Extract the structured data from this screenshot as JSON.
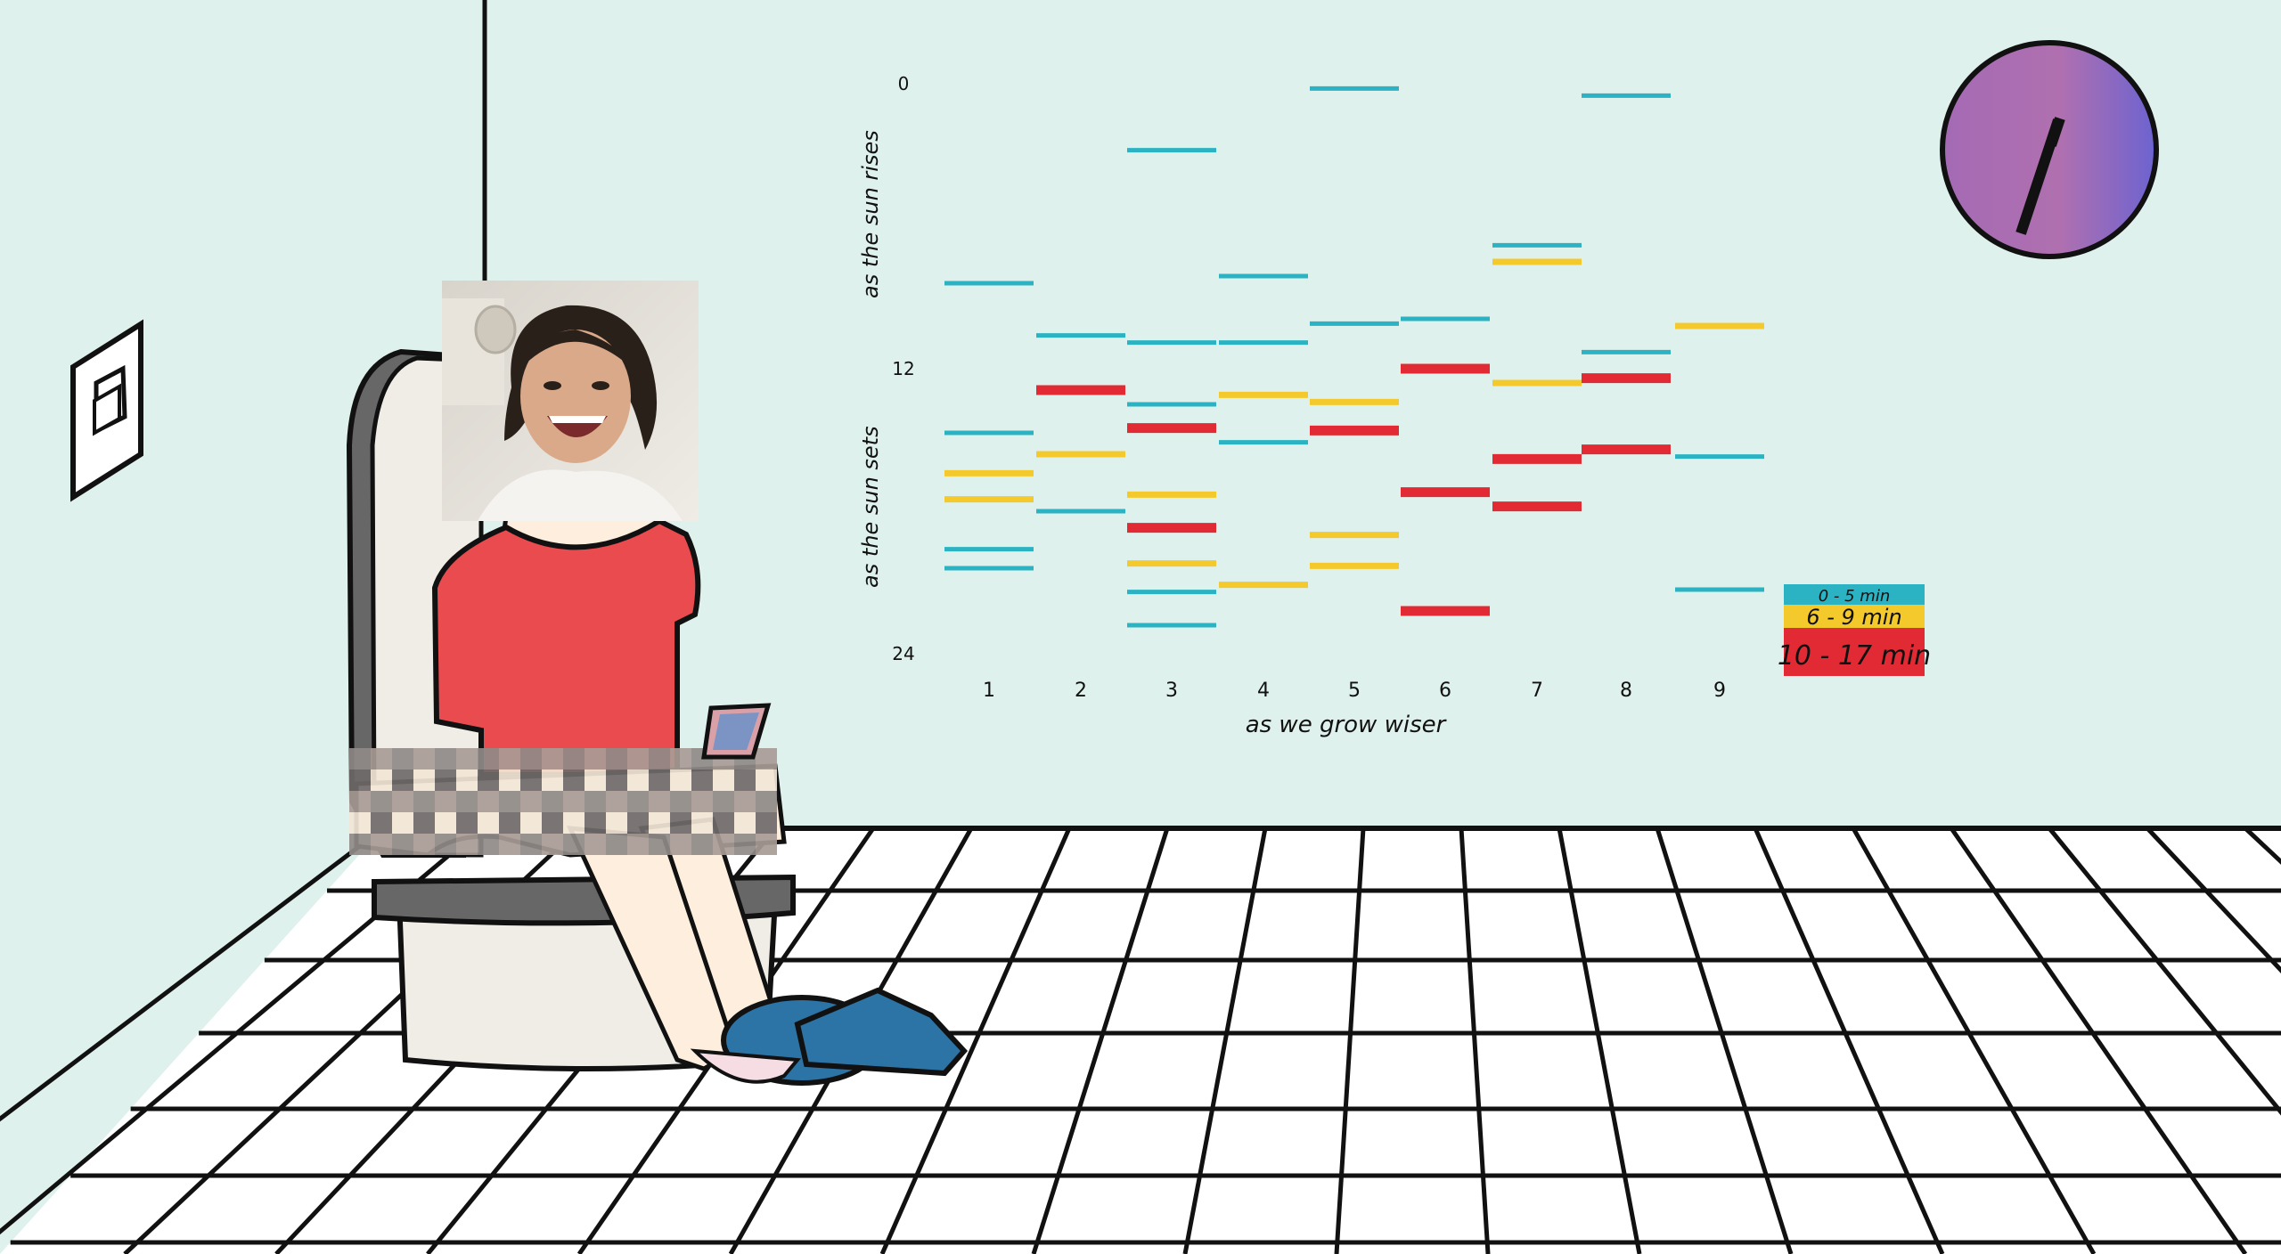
{
  "colors": {
    "wall": "#dff1ec",
    "floor": "#ffffff",
    "shirt": "#ea4b4f",
    "skin": "#fdeedd",
    "slipper": "#2c73a6",
    "toilet_body": "#efede6",
    "toilet_seat": "#676767",
    "clock_a": "#a46ab4",
    "clock_b": "#6c63d0",
    "cat_short": "#2bb3c4",
    "cat_mid": "#f4c92b",
    "cat_long": "#e12a33"
  },
  "icons": {
    "light_switch": "light-switch-icon",
    "clock": "wall-clock-icon",
    "phone": "phone-icon"
  },
  "chart_data": {
    "type": "scatter",
    "mark": "horizontal-tick",
    "title": "",
    "xlabel": "as we grow wiser",
    "ylabel_top": "as the sun rises",
    "ylabel_bottom": "as the sun sets",
    "x_ticks": [
      "1",
      "2",
      "3",
      "4",
      "5",
      "6",
      "7",
      "8",
      "9"
    ],
    "y_ticks": [
      {
        "value": 0,
        "label": "0"
      },
      {
        "value": 12,
        "label": "12"
      },
      {
        "value": 24,
        "label": "24"
      }
    ],
    "ylim": [
      0,
      24
    ],
    "y_inverted": true,
    "legend": {
      "placement": "right",
      "entries": [
        {
          "key": "short",
          "label": "0 - 5 min"
        },
        {
          "key": "mid",
          "label": "6 - 9 min"
        },
        {
          "key": "long",
          "label": "10 - 17 min"
        }
      ]
    },
    "series": [
      {
        "x": 1,
        "points": [
          {
            "y": 8.4,
            "cat": "short"
          },
          {
            "y": 14.7,
            "cat": "short"
          },
          {
            "y": 16.4,
            "cat": "mid"
          },
          {
            "y": 17.5,
            "cat": "mid"
          },
          {
            "y": 19.6,
            "cat": "short"
          },
          {
            "y": 20.4,
            "cat": "short"
          }
        ]
      },
      {
        "x": 2,
        "points": [
          {
            "y": 10.6,
            "cat": "short"
          },
          {
            "y": 12.9,
            "cat": "long"
          },
          {
            "y": 15.6,
            "cat": "mid"
          },
          {
            "y": 18.0,
            "cat": "short"
          }
        ]
      },
      {
        "x": 3,
        "points": [
          {
            "y": 2.8,
            "cat": "short"
          },
          {
            "y": 10.9,
            "cat": "short"
          },
          {
            "y": 13.5,
            "cat": "short"
          },
          {
            "y": 14.5,
            "cat": "long"
          },
          {
            "y": 17.3,
            "cat": "mid"
          },
          {
            "y": 18.7,
            "cat": "long"
          },
          {
            "y": 20.2,
            "cat": "mid"
          },
          {
            "y": 21.4,
            "cat": "short"
          },
          {
            "y": 22.8,
            "cat": "short"
          }
        ]
      },
      {
        "x": 4,
        "points": [
          {
            "y": 8.1,
            "cat": "short"
          },
          {
            "y": 10.9,
            "cat": "short"
          },
          {
            "y": 13.1,
            "cat": "mid"
          },
          {
            "y": 15.1,
            "cat": "short"
          },
          {
            "y": 21.1,
            "cat": "mid"
          }
        ]
      },
      {
        "x": 5,
        "points": [
          {
            "y": 0.2,
            "cat": "short"
          },
          {
            "y": 10.1,
            "cat": "short"
          },
          {
            "y": 13.4,
            "cat": "mid"
          },
          {
            "y": 14.6,
            "cat": "long"
          },
          {
            "y": 19.0,
            "cat": "mid"
          },
          {
            "y": 20.3,
            "cat": "mid"
          }
        ]
      },
      {
        "x": 6,
        "points": [
          {
            "y": 9.9,
            "cat": "short"
          },
          {
            "y": 12.0,
            "cat": "long"
          },
          {
            "y": 17.2,
            "cat": "long"
          },
          {
            "y": 22.2,
            "cat": "long"
          }
        ]
      },
      {
        "x": 7,
        "points": [
          {
            "y": 6.8,
            "cat": "short"
          },
          {
            "y": 7.5,
            "cat": "mid"
          },
          {
            "y": 12.6,
            "cat": "mid"
          },
          {
            "y": 15.8,
            "cat": "long"
          },
          {
            "y": 17.8,
            "cat": "long"
          }
        ]
      },
      {
        "x": 8,
        "points": [
          {
            "y": 0.5,
            "cat": "short"
          },
          {
            "y": 11.3,
            "cat": "short"
          },
          {
            "y": 12.4,
            "cat": "long"
          },
          {
            "y": 15.4,
            "cat": "long"
          }
        ]
      },
      {
        "x": 9,
        "points": [
          {
            "y": 10.2,
            "cat": "mid"
          },
          {
            "y": 15.7,
            "cat": "short"
          },
          {
            "y": 21.3,
            "cat": "short"
          }
        ]
      }
    ]
  }
}
